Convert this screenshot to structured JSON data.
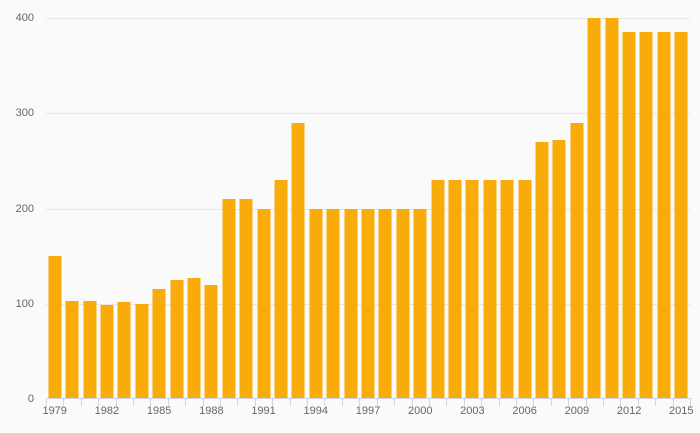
{
  "chart_data": {
    "type": "bar",
    "title": "",
    "xlabel": "",
    "ylabel": "",
    "x": [
      1979,
      1980,
      1981,
      1982,
      1983,
      1984,
      1985,
      1986,
      1987,
      1988,
      1989,
      1990,
      1991,
      1992,
      1993,
      1994,
      1995,
      1996,
      1997,
      1998,
      1999,
      2000,
      2001,
      2002,
      2003,
      2004,
      2005,
      2006,
      2007,
      2008,
      2009,
      2010,
      2011,
      2012,
      2013,
      2014,
      2015
    ],
    "values": [
      150,
      103,
      103,
      99,
      102,
      100,
      115,
      125,
      127,
      120,
      210,
      210,
      200,
      230,
      290,
      200,
      200,
      200,
      200,
      200,
      200,
      200,
      230,
      230,
      230,
      230,
      230,
      230,
      270,
      272,
      290,
      400,
      400,
      385,
      385,
      385,
      385
    ],
    "ylim": [
      0,
      400
    ],
    "yticks": [
      0,
      100,
      200,
      300,
      400
    ],
    "ytick_labels": [
      "0",
      "100",
      "200",
      "300",
      "400"
    ],
    "xtick_labels": [
      "1979",
      "1982",
      "1985",
      "1988",
      "1991",
      "1994",
      "1997",
      "2000",
      "2003",
      "2006",
      "2009",
      "2012",
      "2015"
    ],
    "grid": true,
    "legend_position": "none",
    "colors": {
      "bar": "#f9ab0a",
      "background": "#fafafa",
      "gridline": "#e6e6e6",
      "axis_line": "#ccd6eb",
      "tick": "#ccd6eb",
      "label_text": "#666666"
    }
  }
}
